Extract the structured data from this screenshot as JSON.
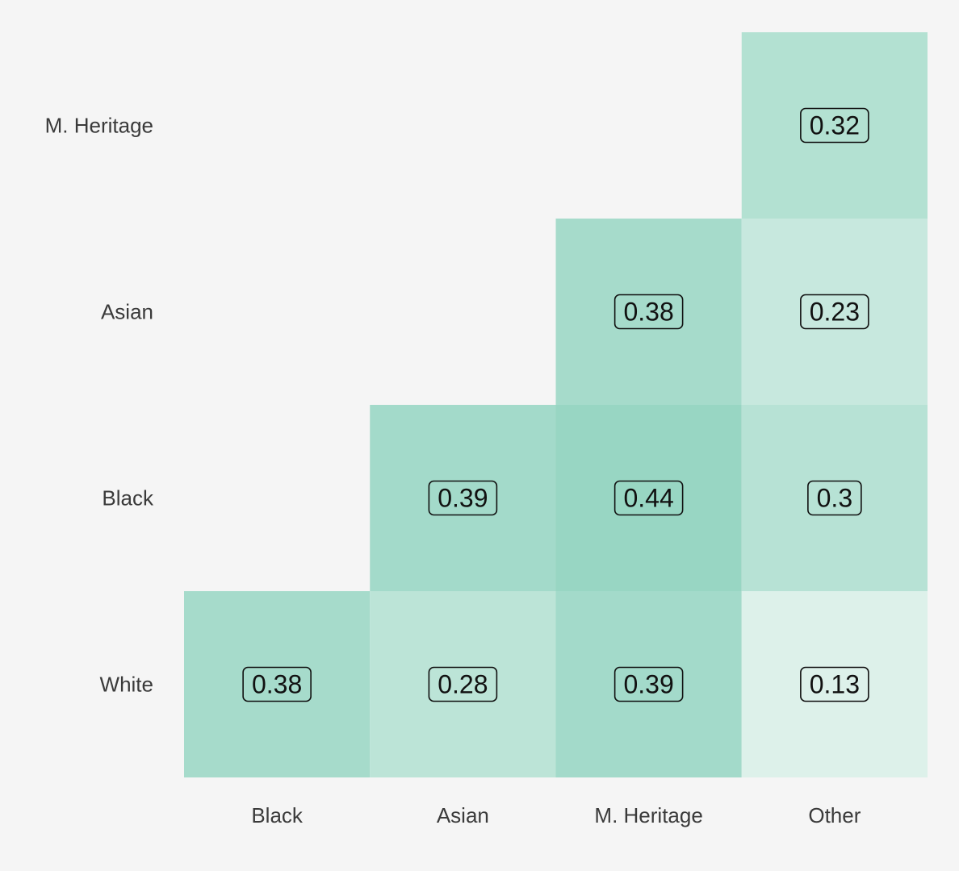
{
  "chart_data": {
    "type": "heatmap",
    "x_categories": [
      "Black",
      "Asian",
      "M. Heritage",
      "Other"
    ],
    "y_categories": [
      "White",
      "Black",
      "Asian",
      "M. Heritage"
    ],
    "cells": [
      {
        "row": "White",
        "col": "Black",
        "value": 0.38,
        "label": "0.38"
      },
      {
        "row": "White",
        "col": "Asian",
        "value": 0.28,
        "label": "0.28"
      },
      {
        "row": "White",
        "col": "M. Heritage",
        "value": 0.39,
        "label": "0.39"
      },
      {
        "row": "White",
        "col": "Other",
        "value": 0.13,
        "label": "0.13"
      },
      {
        "row": "Black",
        "col": "Asian",
        "value": 0.39,
        "label": "0.39"
      },
      {
        "row": "Black",
        "col": "M. Heritage",
        "value": 0.44,
        "label": "0.44"
      },
      {
        "row": "Black",
        "col": "Other",
        "value": 0.3,
        "label": "0.3"
      },
      {
        "row": "Asian",
        "col": "M. Heritage",
        "value": 0.38,
        "label": "0.38"
      },
      {
        "row": "Asian",
        "col": "Other",
        "value": 0.23,
        "label": "0.23"
      },
      {
        "row": "M. Heritage",
        "col": "Other",
        "value": 0.32,
        "label": "0.32"
      }
    ],
    "color_scale": {
      "low": "#e4f4ee",
      "high": "#96d5c2"
    },
    "value_range": [
      0.1,
      0.45
    ],
    "legend": "none",
    "grid": false
  },
  "colors": {
    "background": "#f5f5f5",
    "label_box_stroke": "#111111",
    "tick_text": "#3a3a3a"
  }
}
